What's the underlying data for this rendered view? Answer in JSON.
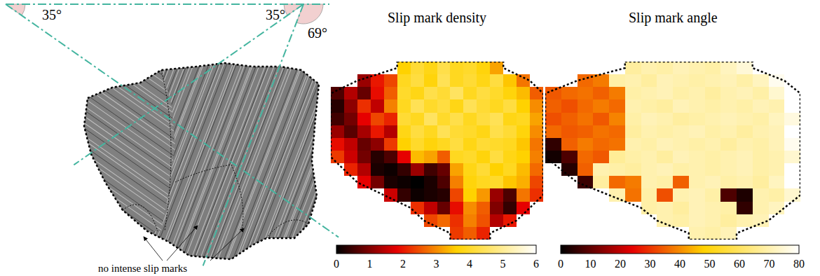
{
  "micrograph": {
    "angles": [
      {
        "value": 35,
        "label": "35°"
      },
      {
        "value": 35,
        "label": "35°"
      },
      {
        "value": 69,
        "label": "69°"
      }
    ],
    "annotation": "no intense slip marks"
  },
  "chart_data": [
    {
      "type": "heatmap",
      "title": "Slip mark density",
      "cells": [
        [
          null,
          null,
          null,
          null,
          null,
          3.6,
          4.1,
          3.8,
          4.3,
          3.9,
          4.0,
          3.7,
          3.2,
          null,
          null,
          null
        ],
        [
          null,
          null,
          1.2,
          2.0,
          2.4,
          3.9,
          4.2,
          3.7,
          4.4,
          3.9,
          4.1,
          3.8,
          4.2,
          3.5,
          2.8,
          null
        ],
        [
          0.6,
          1.4,
          0.8,
          1.9,
          2.6,
          4.0,
          3.8,
          4.3,
          4.1,
          4.5,
          3.9,
          4.2,
          4.0,
          3.7,
          3.4,
          2.6
        ],
        [
          0.3,
          1.1,
          2.2,
          1.5,
          2.9,
          3.9,
          4.4,
          4.0,
          4.2,
          3.8,
          4.4,
          4.1,
          3.9,
          4.2,
          3.6,
          3.0
        ],
        [
          0.5,
          0.9,
          1.8,
          2.4,
          2.1,
          4.1,
          3.9,
          4.5,
          4.0,
          4.3,
          3.9,
          4.2,
          4.4,
          3.8,
          3.9,
          3.2
        ],
        [
          1.2,
          0.7,
          1.3,
          2.0,
          1.4,
          3.8,
          4.2,
          3.9,
          4.4,
          4.1,
          4.0,
          3.8,
          4.3,
          4.1,
          3.7,
          3.0
        ],
        [
          1.9,
          1.5,
          0.8,
          1.1,
          2.3,
          3.6,
          4.0,
          3.7,
          3.9,
          4.2,
          3.8,
          4.1,
          4.0,
          3.9,
          3.5,
          2.8
        ],
        [
          2.3,
          1.6,
          0.9,
          0.3,
          0.6,
          1.8,
          3.4,
          3.2,
          2.6,
          3.9,
          4.0,
          3.7,
          4.2,
          3.8,
          3.6,
          2.9
        ],
        [
          null,
          2.1,
          1.4,
          0.2,
          0.1,
          0.4,
          1.2,
          0.5,
          0.8,
          3.2,
          3.8,
          4.1,
          3.6,
          3.9,
          3.4,
          2.7
        ],
        [
          null,
          null,
          1.8,
          0.9,
          0.2,
          0.1,
          0,
          0.2,
          0.6,
          2.9,
          3.7,
          3.9,
          4.0,
          3.5,
          3.3,
          2.4
        ],
        [
          null,
          null,
          null,
          null,
          1.6,
          0.4,
          0.1,
          0.2,
          0.3,
          2.4,
          3.6,
          3.1,
          1.2,
          0.6,
          2.8,
          2.2
        ],
        [
          null,
          null,
          null,
          null,
          null,
          null,
          2.2,
          1.5,
          0.8,
          1.9,
          3.0,
          2.6,
          1.0,
          0.4,
          1.8,
          null
        ],
        [
          null,
          null,
          null,
          null,
          null,
          null,
          null,
          2.4,
          2.7,
          2.2,
          2.9,
          2.5,
          1.4,
          2.0,
          null,
          null
        ],
        [
          null,
          null,
          null,
          null,
          null,
          null,
          null,
          null,
          null,
          2.3,
          2.6,
          2.1,
          null,
          null,
          null,
          null
        ]
      ],
      "colorbar": {
        "range": [
          0,
          6
        ],
        "ticks": [
          0,
          1,
          2,
          3,
          4,
          5,
          6
        ]
      }
    },
    {
      "type": "heatmap",
      "title": "Slip mark angle",
      "cells": [
        [
          null,
          null,
          null,
          null,
          null,
          68,
          70,
          69,
          71,
          70,
          69,
          72,
          75,
          null,
          null,
          null
        ],
        [
          null,
          null,
          36,
          38,
          69,
          70,
          68,
          71,
          70,
          69,
          70,
          71,
          69,
          72,
          78,
          null
        ],
        [
          34,
          36,
          37,
          35,
          38,
          69,
          70,
          71,
          69,
          70,
          68,
          70,
          71,
          69,
          74,
          80
        ],
        [
          35,
          33,
          36,
          38,
          36,
          70,
          69,
          68,
          71,
          70,
          69,
          70,
          69,
          71,
          70,
          80
        ],
        [
          33,
          35,
          37,
          34,
          39,
          69,
          71,
          70,
          68,
          69,
          70,
          71,
          70,
          69,
          72,
          76
        ],
        [
          36,
          34,
          35,
          37,
          36,
          68,
          70,
          69,
          70,
          71,
          69,
          70,
          68,
          70,
          71,
          80
        ],
        [
          5,
          35,
          38,
          36,
          37,
          70,
          69,
          71,
          70,
          69,
          70,
          68,
          70,
          69,
          71,
          78
        ],
        [
          2,
          8,
          36,
          34,
          67,
          69,
          70,
          68,
          71,
          70,
          69,
          70,
          71,
          69,
          70,
          74
        ],
        [
          null,
          4,
          35,
          70,
          69,
          68,
          70,
          71,
          69,
          70,
          69,
          70,
          71,
          69,
          70,
          80
        ],
        [
          null,
          null,
          6,
          68,
          36,
          38,
          70,
          69,
          35,
          70,
          71,
          69,
          70,
          68,
          72,
          80
        ],
        [
          null,
          null,
          null,
          null,
          70,
          37,
          69,
          33,
          70,
          71,
          69,
          8,
          3,
          70,
          69,
          74
        ],
        [
          null,
          null,
          null,
          null,
          null,
          null,
          69,
          70,
          68,
          71,
          70,
          69,
          5,
          70,
          72,
          null
        ],
        [
          null,
          null,
          null,
          null,
          null,
          null,
          null,
          70,
          69,
          71,
          70,
          68,
          70,
          71,
          null,
          null
        ],
        [
          null,
          null,
          null,
          null,
          null,
          null,
          null,
          null,
          null,
          70,
          69,
          71,
          null,
          null,
          null,
          null
        ]
      ],
      "colorbar": {
        "range": [
          0,
          80
        ],
        "ticks": [
          0,
          10,
          20,
          30,
          40,
          50,
          60,
          70,
          80
        ]
      }
    }
  ]
}
